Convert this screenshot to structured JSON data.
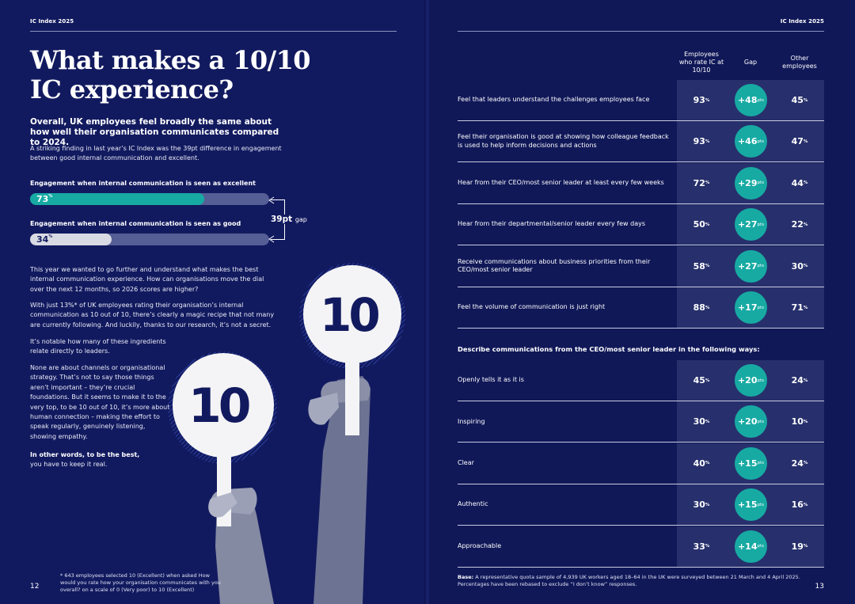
{
  "left_page": {
    "running_head": "IC Index 2025",
    "title": "What makes a 10/10 IC experience?",
    "lead": "Overall, UK employees feel broadly the same about how well their organisation communicates compared to 2024.",
    "intro": "A striking finding in last year’s IC Index was the 39pt difference in engagement between good internal communication and excellent.",
    "bars": [
      {
        "label": "Engagement when internal communication is seen as excellent",
        "value": 73,
        "value_label": "73",
        "unit": "%",
        "color": "#17aaa3"
      },
      {
        "label": "Engagement when internal communication is seen as good",
        "value": 34,
        "value_label": "34",
        "unit": "%",
        "color": "#d9dbe4"
      }
    ],
    "gap_value": "39pt",
    "gap_word": "gap",
    "para1": "This year we wanted to go further and understand what makes the best internal communication experience. How can organisations move the dial over the next 12 months, so 2026 scores are higher?",
    "para2": "With just 13%* of UK employees rating their organisation’s internal communication as 10 out of 10, there’s clearly a magic recipe that not many are currently following. And luckily, thanks to our research, it’s not a secret.",
    "para3": "It’s notable how many of these ingredients relate directly to leaders.",
    "para4": "None are about channels or organisational strategy. That’s not to say those things aren’t important – they’re crucial foundations. But it seems to make it to the very top, to be 10 out of 10, it’s more about human connection – making the effort to speak regularly, genuinely listening, showing empathy.",
    "closing_bold": "In other words, to be the best,",
    "closing_rest": "you have to keep it real.",
    "sign_left": "10",
    "sign_right": "10",
    "footnote": "* 643 employees selected 10 (Excellent) when asked How would you rate how your organisation communicates with you overall? on a scale of 0 (Very poor) to 10 (Excellent)",
    "page_number": "12"
  },
  "right_page": {
    "running_head": "IC Index 2025",
    "col_headers": {
      "a": "Employees who rate IC at 10/10",
      "b": "Gap",
      "c_line1": "Other",
      "c_line2": "employees"
    },
    "rows_group1": [
      {
        "statement": "Feel that leaders understand the challenges employees face",
        "a": "93",
        "gap": "+48",
        "c": "45"
      },
      {
        "statement": "Feel their organisation is good at showing how colleague feedback is used to help inform decisions and actions",
        "a": "93",
        "gap": "+46",
        "c": "47"
      },
      {
        "statement": "Hear from their CEO/most senior leader at least every few weeks",
        "a": "72",
        "gap": "+29",
        "c": "44"
      },
      {
        "statement": "Hear from their departmental/senior leader every few days",
        "a": "50",
        "gap": "+27",
        "c": "22"
      },
      {
        "statement": "Receive communications about business priorities from their CEO/most senior leader",
        "a": "58",
        "gap": "+27",
        "c": "30"
      },
      {
        "statement": "Feel the volume of communication is just right",
        "a": "88",
        "gap": "+17",
        "c": "71"
      }
    ],
    "section_heading": "Describe communications from the CEO/most senior leader in the following ways:",
    "rows_group2": [
      {
        "statement": "Openly tells it as it is",
        "a": "45",
        "gap": "+20",
        "c": "24"
      },
      {
        "statement": "Inspiring",
        "a": "30",
        "gap": "+20",
        "c": "10"
      },
      {
        "statement": "Clear",
        "a": "40",
        "gap": "+15",
        "c": "24"
      },
      {
        "statement": "Authentic",
        "a": "30",
        "gap": "+15",
        "c": "16"
      },
      {
        "statement": "Approachable",
        "a": "33",
        "gap": "+14",
        "c": "19"
      }
    ],
    "unit_pct": "%",
    "unit_pts": "pts",
    "base_label": "Base:",
    "base_text": "A representative quota sample of 4,939 UK workers aged 18–64 in the UK were surveyed between 21 March and 4 April 2025. Percentages have been rebased to exclude “I don’t know” responses.",
    "page_number": "13"
  }
}
